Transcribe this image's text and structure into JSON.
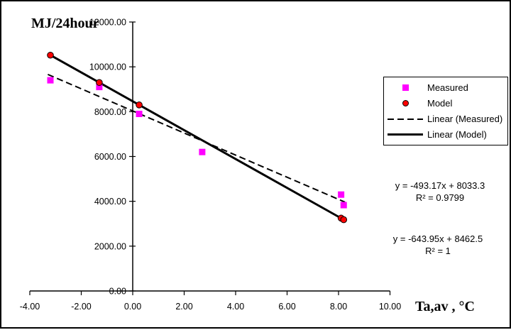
{
  "chart_data": {
    "type": "scatter",
    "title": "",
    "ylabel": "MJ/24hour",
    "xlabel": "Ta,av , °C",
    "xlim": [
      -4,
      10
    ],
    "ylim": [
      0,
      12000
    ],
    "x_ticks": [
      "-4.00",
      "-2.00",
      "0.00",
      "2.00",
      "4.00",
      "6.00",
      "8.00",
      "10.00"
    ],
    "y_ticks": [
      "0.00",
      "2000.00",
      "4000.00",
      "6000.00",
      "8000.00",
      "10000.00",
      "12000.00"
    ],
    "grid": false,
    "legend_position": "right",
    "axis_color": "#000000",
    "series": [
      {
        "name": "Measured",
        "marker": "square",
        "color": "#FF00FF",
        "points": [
          [
            -3.2,
            9400
          ],
          [
            -1.3,
            9100
          ],
          [
            0.25,
            7900
          ],
          [
            2.7,
            6200
          ],
          [
            8.1,
            4300
          ],
          [
            8.2,
            3830
          ]
        ]
      },
      {
        "name": "Model",
        "marker": "circle",
        "color": "#FF0000",
        "points": [
          [
            -3.2,
            10520
          ],
          [
            -1.3,
            9300
          ],
          [
            0.25,
            8300
          ],
          [
            8.1,
            3250
          ],
          [
            8.2,
            3180
          ]
        ]
      }
    ],
    "trendlines": [
      {
        "name": "Linear (Measured)",
        "style": "dashed",
        "slope": -493.17,
        "intercept": 8033.3,
        "r2": 0.9799,
        "x_range": [
          -3.3,
          8.25
        ]
      },
      {
        "name": "Linear (Model)",
        "style": "solid",
        "slope": -643.95,
        "intercept": 8462.5,
        "r2": 1,
        "x_range": [
          -3.2,
          8.2
        ]
      }
    ],
    "annotations": [
      {
        "lines": [
          "y = -493.17x + 8033.3",
          "R² = 0.9799"
        ]
      },
      {
        "lines": [
          "y = -643.95x + 8462.5",
          "R² = 1"
        ]
      }
    ]
  }
}
